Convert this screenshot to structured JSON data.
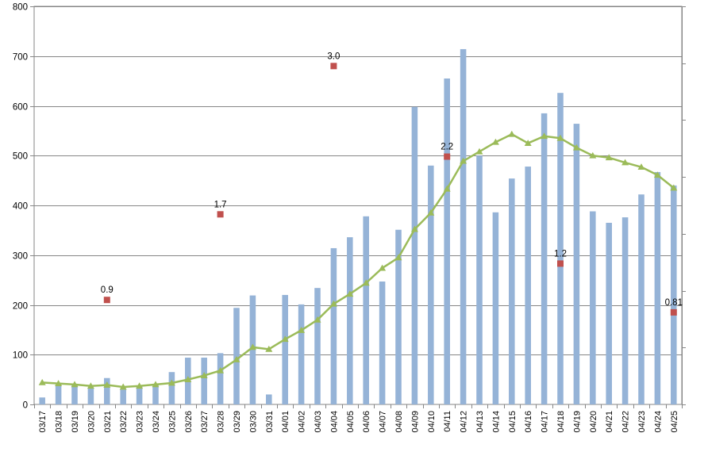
{
  "chart_data": {
    "type": "bar",
    "categories": [
      "03/17",
      "03/18",
      "03/19",
      "03/20",
      "03/21",
      "03/22",
      "03/23",
      "03/24",
      "03/25",
      "03/26",
      "03/27",
      "03/28",
      "03/29",
      "03/30",
      "03/31",
      "04/01",
      "04/02",
      "04/03",
      "04/04",
      "04/05",
      "04/06",
      "04/07",
      "04/08",
      "04/09",
      "04/10",
      "04/11",
      "04/12",
      "04/13",
      "04/14",
      "04/15",
      "04/16",
      "04/17",
      "04/18",
      "04/19",
      "04/20",
      "04/21",
      "04/22",
      "04/23",
      "04/24",
      "04/25"
    ],
    "ylim": [
      0,
      800
    ],
    "yticks": [
      "0",
      "100",
      "200",
      "300",
      "400",
      "500",
      "600",
      "700",
      "800"
    ],
    "grid": true,
    "series": [
      {
        "type": "bar",
        "color": "#95b3d7",
        "values": [
          14,
          41,
          40,
          32,
          53,
          30,
          38,
          39,
          65,
          94,
          94,
          103,
          194,
          219,
          20,
          220,
          201,
          234,
          314,
          336,
          378,
          247,
          351,
          598,
          480,
          655,
          714,
          500,
          386,
          454,
          478,
          585,
          626,
          564,
          388,
          365,
          376,
          422,
          467,
          440
        ]
      },
      {
        "type": "line",
        "color": "#9bbb59",
        "marker": "triangle",
        "values": [
          44,
          42,
          40,
          37,
          39,
          35,
          37,
          40,
          43,
          50,
          58,
          68,
          90,
          115,
          111,
          131,
          149,
          170,
          202,
          222,
          244,
          274,
          295,
          352,
          385,
          433,
          489,
          508,
          527,
          543,
          525,
          539,
          535,
          516,
          500,
          496,
          486,
          477,
          461,
          435
        ]
      },
      {
        "type": "scatter",
        "color": "#c0504d",
        "marker": "square",
        "points": [
          {
            "x": "03/21",
            "y": 210,
            "label": "0.9"
          },
          {
            "x": "03/28",
            "y": 382,
            "label": "1.7"
          },
          {
            "x": "04/04",
            "y": 680,
            "label": "3.0"
          },
          {
            "x": "04/11",
            "y": 498,
            "label": "2.2"
          },
          {
            "x": "04/18",
            "y": 283,
            "label": "1.2"
          },
          {
            "x": "04/25",
            "y": 185,
            "label": "0.81"
          }
        ]
      }
    ]
  }
}
